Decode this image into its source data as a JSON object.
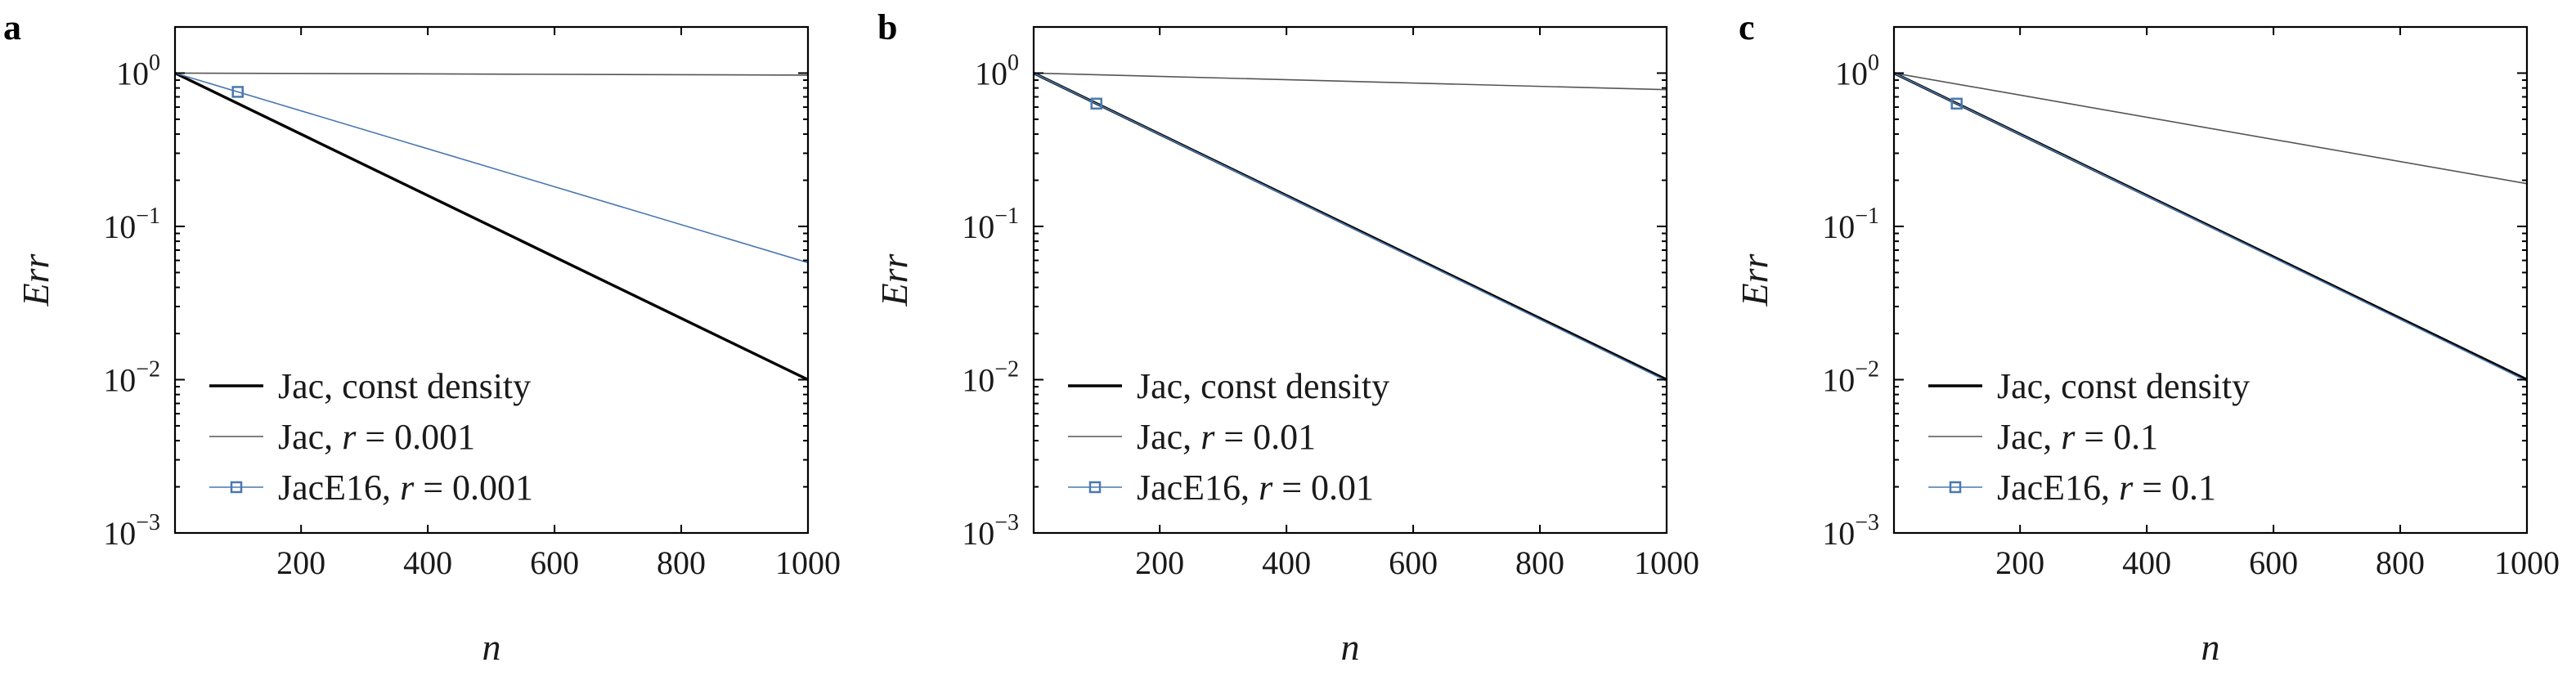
{
  "chart_data": [
    {
      "panel_label": "a",
      "type": "line",
      "xlabel": "n",
      "ylabel": "Err",
      "xlim": [
        1,
        1000
      ],
      "ylim": [
        0.001,
        2
      ],
      "yscale": "log",
      "grid": false,
      "legend_position": "bottom-left",
      "x_ticks": [
        200,
        400,
        600,
        800,
        1000
      ],
      "x_tick_labels": [
        "200",
        "400",
        "600",
        "800",
        "1000"
      ],
      "y_ticks": [
        1,
        0.1,
        0.01,
        0.001
      ],
      "y_tick_labels": [
        {
          "base": "10",
          "exp": "0"
        },
        {
          "base": "10",
          "exp": "−1"
        },
        {
          "base": "10",
          "exp": "−2"
        },
        {
          "base": "10",
          "exp": "−3"
        }
      ],
      "series": [
        {
          "name": "Jac, const density",
          "name_prefix": "Jac, const density",
          "name_var": "",
          "name_suffix": "",
          "color": "#000000",
          "width": 3.4,
          "marker": "none",
          "x": [
            1,
            1000
          ],
          "y": [
            1.0,
            0.01
          ]
        },
        {
          "name": "Jac, r = 0.001",
          "name_prefix": "Jac, ",
          "name_var": "r",
          "name_suffix": " = 0.001",
          "color": "#555555",
          "width": 1.6,
          "marker": "none",
          "x": [
            1,
            1000
          ],
          "y": [
            1.0,
            0.97
          ]
        },
        {
          "name": "JacE16, r = 0.001",
          "name_prefix": "JacE16, ",
          "name_var": "r",
          "name_suffix": " = 0.001",
          "color": "#4a78b0",
          "width": 1.6,
          "marker": "square",
          "marker_x": [
            100
          ],
          "x": [
            1,
            1000
          ],
          "y": [
            1.0,
            0.058
          ]
        }
      ]
    },
    {
      "panel_label": "b",
      "type": "line",
      "xlabel": "n",
      "ylabel": "Err",
      "xlim": [
        1,
        1000
      ],
      "ylim": [
        0.001,
        2
      ],
      "yscale": "log",
      "grid": false,
      "legend_position": "bottom-left",
      "x_ticks": [
        200,
        400,
        600,
        800,
        1000
      ],
      "x_tick_labels": [
        "200",
        "400",
        "600",
        "800",
        "1000"
      ],
      "y_ticks": [
        1,
        0.1,
        0.01,
        0.001
      ],
      "y_tick_labels": [
        {
          "base": "10",
          "exp": "0"
        },
        {
          "base": "10",
          "exp": "−1"
        },
        {
          "base": "10",
          "exp": "−2"
        },
        {
          "base": "10",
          "exp": "−3"
        }
      ],
      "series": [
        {
          "name": "Jac, const density",
          "name_prefix": "Jac, const density",
          "name_var": "",
          "name_suffix": "",
          "color": "#000000",
          "width": 3.4,
          "marker": "none",
          "x": [
            1,
            1000
          ],
          "y": [
            1.0,
            0.01
          ]
        },
        {
          "name": "Jac, r = 0.01",
          "name_prefix": "Jac, ",
          "name_var": "r",
          "name_suffix": " = 0.01",
          "color": "#555555",
          "width": 1.6,
          "marker": "none",
          "x": [
            1,
            1000
          ],
          "y": [
            1.0,
            0.78
          ]
        },
        {
          "name": "JacE16, r = 0.01",
          "name_prefix": "JacE16, ",
          "name_var": "r",
          "name_suffix": " = 0.01",
          "color": "#4a78b0",
          "width": 1.6,
          "marker": "square",
          "marker_x": [
            100
          ],
          "x": [
            1,
            1000
          ],
          "y": [
            1.0,
            0.0098
          ]
        }
      ]
    },
    {
      "panel_label": "c",
      "type": "line",
      "xlabel": "n",
      "ylabel": "Err",
      "xlim": [
        1,
        1000
      ],
      "ylim": [
        0.001,
        2
      ],
      "yscale": "log",
      "grid": false,
      "legend_position": "bottom-left",
      "x_ticks": [
        200,
        400,
        600,
        800,
        1000
      ],
      "x_tick_labels": [
        "200",
        "400",
        "600",
        "800",
        "1000"
      ],
      "y_ticks": [
        1,
        0.1,
        0.01,
        0.001
      ],
      "y_tick_labels": [
        {
          "base": "10",
          "exp": "0"
        },
        {
          "base": "10",
          "exp": "−1"
        },
        {
          "base": "10",
          "exp": "−2"
        },
        {
          "base": "10",
          "exp": "−3"
        }
      ],
      "series": [
        {
          "name": "Jac, const density",
          "name_prefix": "Jac, const density",
          "name_var": "",
          "name_suffix": "",
          "color": "#000000",
          "width": 3.4,
          "marker": "none",
          "x": [
            1,
            1000
          ],
          "y": [
            1.0,
            0.01
          ]
        },
        {
          "name": "Jac, r = 0.1",
          "name_prefix": "Jac, ",
          "name_var": "r",
          "name_suffix": " = 0.1",
          "color": "#555555",
          "width": 1.6,
          "marker": "none",
          "x": [
            1,
            1000
          ],
          "y": [
            1.0,
            0.19
          ]
        },
        {
          "name": "JacE16, r = 0.1",
          "name_prefix": "JacE16, ",
          "name_var": "r",
          "name_suffix": " = 0.1",
          "color": "#4a78b0",
          "width": 1.6,
          "marker": "square",
          "marker_x": [
            100
          ],
          "x": [
            1,
            1000
          ],
          "y": [
            1.0,
            0.0098
          ]
        }
      ]
    }
  ]
}
